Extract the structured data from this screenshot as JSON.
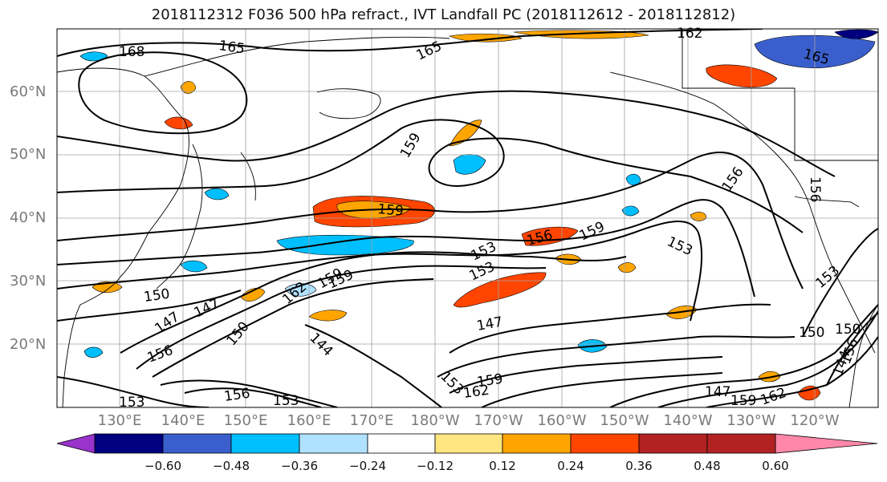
{
  "title": "2018112312 F036 500 hPa refract., IVT Landfall PC (2018112612 - 2018112812)",
  "lat_labels": [
    "60°N",
    "50°N",
    "40°N",
    "30°N",
    "20°N"
  ],
  "lon_labels": [
    "130°E",
    "140°E",
    "150°E",
    "160°E",
    "170°E",
    "180°W",
    "170°W",
    "160°W",
    "150°W",
    "140°W",
    "130°W",
    "120°W"
  ],
  "colorbar": {
    "ticks": [
      "−0.60",
      "−0.48",
      "−0.36",
      "−0.24",
      "−0.12",
      "0.12",
      "0.24",
      "0.36",
      "0.48",
      "0.60"
    ],
    "colors": [
      "#9933cc",
      "#000080",
      "#3a5fcd",
      "#00bfff",
      "#b0e2ff",
      "#ffffff",
      "#ffe680",
      "#ffa500",
      "#ff4500",
      "#b22222",
      "#ff88aa"
    ]
  },
  "contour_labels": [
    "168",
    "165",
    "165",
    "162",
    "165",
    "159",
    "159",
    "156",
    "156",
    "159",
    "153",
    "153",
    "153",
    "156",
    "159",
    "153",
    "150",
    "147",
    "147",
    "147",
    "150",
    "159",
    "162",
    "144",
    "156",
    "153",
    "159",
    "162",
    "147",
    "150",
    "159",
    "162",
    "150",
    "153",
    "156",
    "144",
    "156",
    "153"
  ]
}
